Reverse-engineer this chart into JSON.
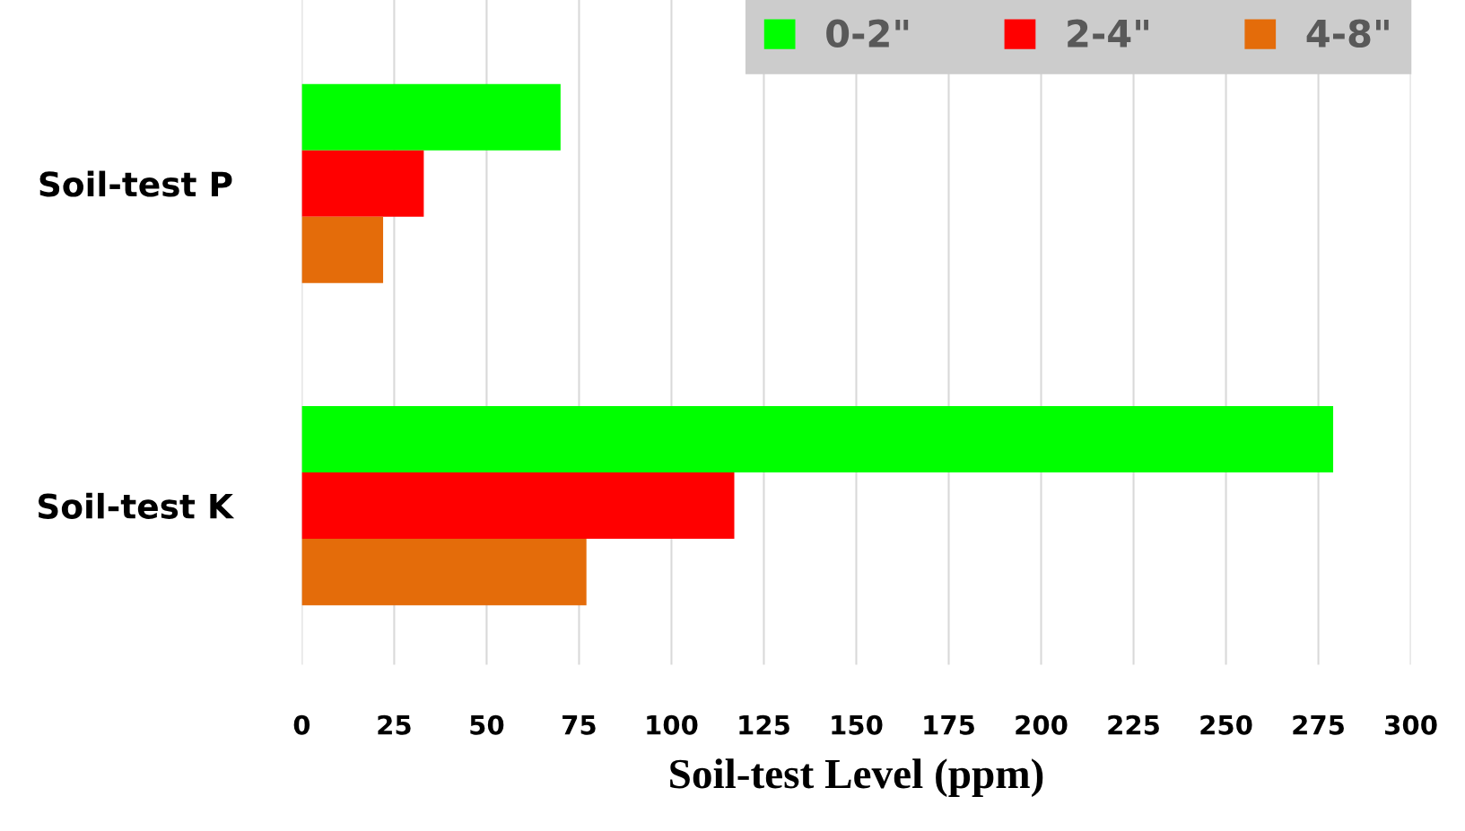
{
  "chart_data": {
    "type": "bar",
    "orientation": "horizontal",
    "xlabel": "Soil-test Level (ppm)",
    "categories": [
      "Soil-test P",
      "Soil-test K"
    ],
    "series": [
      {
        "name": "0-2\"",
        "color": "#00ff00",
        "values": [
          70,
          279
        ]
      },
      {
        "name": "2-4\"",
        "color": "#ff0000",
        "values": [
          33,
          117
        ]
      },
      {
        "name": "4-8\"",
        "color": "#e46c0a",
        "values": [
          22,
          77
        ]
      }
    ],
    "xlim": [
      0,
      300
    ],
    "xticks": [
      0,
      25,
      50,
      75,
      100,
      125,
      150,
      175,
      200,
      225,
      250,
      275,
      300
    ],
    "grid": "x",
    "legend": "top right"
  }
}
